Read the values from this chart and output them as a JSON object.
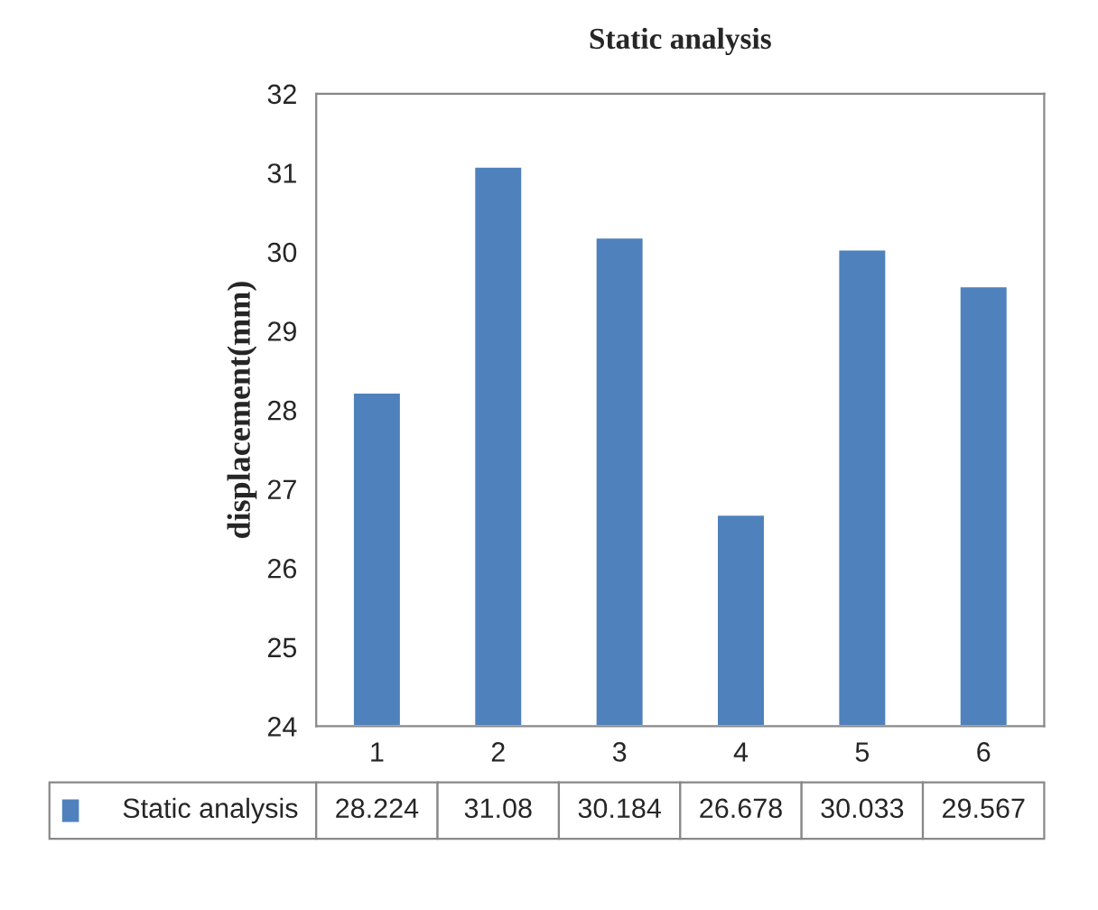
{
  "chart_data": {
    "type": "bar",
    "title": "Static analysis",
    "ylabel": "displacement(mm)",
    "categories": [
      "1",
      "2",
      "3",
      "4",
      "5",
      "6"
    ],
    "series": [
      {
        "name": "Static analysis",
        "color": "#4f81bd",
        "values": [
          28.224,
          31.08,
          30.184,
          26.678,
          30.033,
          29.567
        ]
      }
    ],
    "ylim": [
      24,
      32
    ],
    "yticks": [
      24,
      25,
      26,
      27,
      28,
      29,
      30,
      31,
      32
    ],
    "data_labels": true,
    "legend": "bottom",
    "grid": false
  }
}
